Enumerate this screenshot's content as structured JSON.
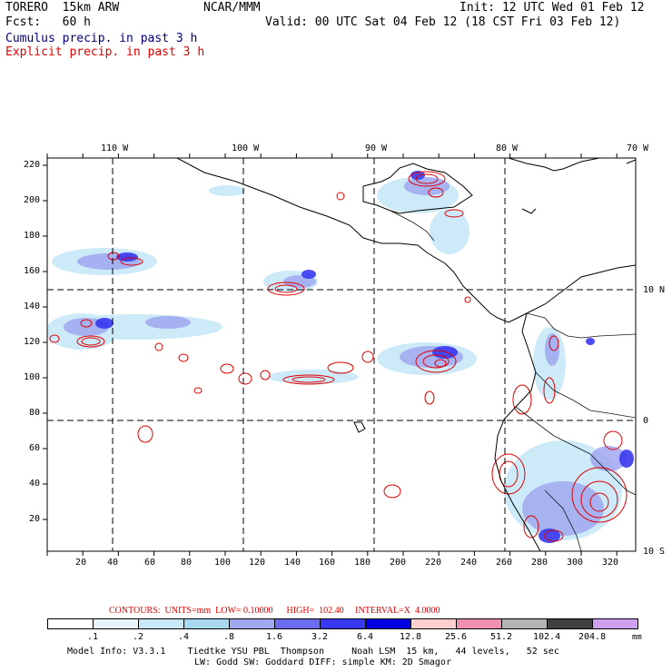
{
  "header": {
    "model": "TORERO  15km ARW",
    "org": "NCAR/MMM",
    "init": "Init: 12 UTC Wed 01 Feb 12",
    "fcst": "Fcst:   60 h",
    "valid": "Valid: 00 UTC Sat 04 Feb 12 (18 CST Fri 03 Feb 12)",
    "field1": "Cumulus precip. in past 3 h",
    "field2": "Explicit precip. in past 3 h",
    "field1_color": "#00007f",
    "field2_color": "#e00000"
  },
  "map": {
    "lon_labels": [
      "110 W",
      "100 W",
      "90 W",
      "80 W",
      "70 W"
    ],
    "lat_labels": [
      "10 N",
      "0",
      "10 S"
    ],
    "y_ticks": [
      "220",
      "200",
      "180",
      "160",
      "140",
      "120",
      "100",
      "80",
      "60",
      "40",
      "20"
    ],
    "x_ticks": [
      "20",
      "40",
      "60",
      "80",
      "100",
      "120",
      "140",
      "160",
      "180",
      "200",
      "220",
      "240",
      "260",
      "280",
      "300",
      "320"
    ]
  },
  "contours": {
    "text": "CONTOURS:  UNITS=mm  LOW= 0.10000      HIGH=  102.40     INTERVAL=X  4.0000",
    "color": "#e00000"
  },
  "colorbar": {
    "colors": [
      "#ffffff",
      "#e8f4fc",
      "#c8e8f8",
      "#a8d8f0",
      "#a0a8f0",
      "#6c6cf0",
      "#3838f0",
      "#0000e0",
      "#ffd0d0",
      "#f090b0",
      "#b4b4b4",
      "#404040",
      "#d0a0f0"
    ],
    "labels": [
      ".1",
      ".2",
      ".4",
      ".8",
      "1.6",
      "3.2",
      "6.4",
      "12.8",
      "25.6",
      "51.2",
      "102.4",
      "204.8"
    ],
    "units": "mm"
  },
  "footer": {
    "line1": "Model Info: V3.3.1    Tiedtke YSU PBL  Thompson     Noah LSM  15 km,   44 levels,   52 sec",
    "line2": "LW: Godd SW: Goddard DIFF: simple KM: 2D Smagor"
  }
}
